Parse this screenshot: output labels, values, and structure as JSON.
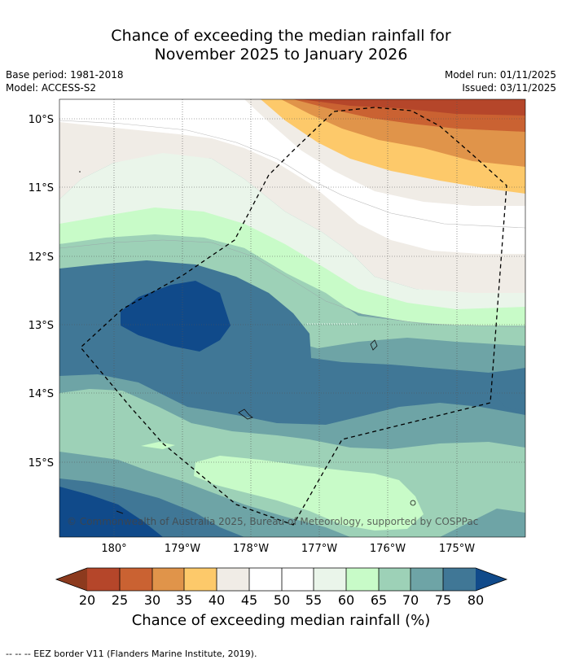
{
  "title_line1": "Chance of exceeding the median rainfall for",
  "title_line2": "November 2025 to January 2026",
  "meta": {
    "base_period": "Base period: 1981-2018",
    "model": "Model: ACCESS-S2",
    "model_run": "Model run: 01/11/2025",
    "issued": "Issued: 03/11/2025"
  },
  "map": {
    "lat_labels": [
      "10°S",
      "11°S",
      "12°S",
      "13°S",
      "14°S",
      "15°S"
    ],
    "lon_labels": [
      "180°",
      "179°W",
      "178°W",
      "177°W",
      "176°W",
      "175°W"
    ],
    "copyright": "© Commonwealth of Australia 2025, Bureau of Meteorology, supported by COSPPac"
  },
  "colorbar": {
    "ticks": [
      "20",
      "25",
      "30",
      "35",
      "40",
      "45",
      "50",
      "55",
      "60",
      "65",
      "70",
      "75",
      "80"
    ],
    "colors": {
      "under": "#8c3a1e",
      "c20_25": "#b5462a",
      "c25_30": "#ca6232",
      "c30_35": "#e0944a",
      "c35_40": "#fdc96a",
      "c40_45": "#f0ece6",
      "c45_55": "#ffffff",
      "c55_60": "#eaf5ea",
      "c60_65": "#c8fbc8",
      "c65_70": "#9dd1b7",
      "c70_75": "#6ea4a6",
      "c75_80": "#407796",
      "over": "#104a8a"
    },
    "label": "Chance of exceeding median rainfall (%)"
  },
  "footer": "-- -- -- EEZ border V11 (Flanders Marine Institute, 2019)."
}
